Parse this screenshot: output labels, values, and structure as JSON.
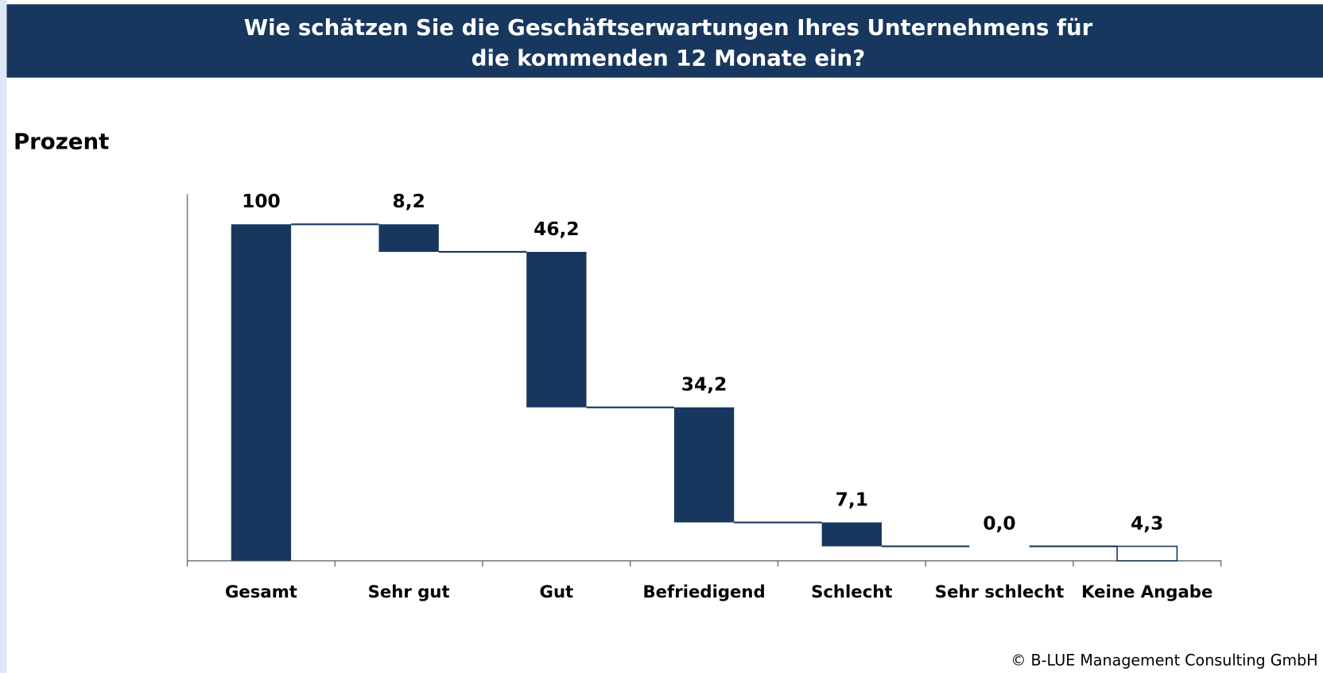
{
  "chart_data": {
    "type": "waterfall",
    "title": [
      "Wie schätzen Sie die Geschäftserwartungen Ihres Unternehmens für",
      "die kommenden 12 Monate ein?"
    ],
    "y_axis_label": "Prozent",
    "categories": [
      "Gesamt",
      "Sehr gut",
      "Gut",
      "Befriedigend",
      "Schlecht",
      "Sehr schlecht",
      "Keine Angabe"
    ],
    "values": [
      100,
      8.2,
      46.2,
      34.2,
      7.1,
      0.0,
      4.3
    ],
    "value_labels": [
      "100",
      "8,2",
      "46,2",
      "34,2",
      "7,1",
      "0,0",
      "4,3"
    ],
    "colors": [
      "#17375e",
      "#17375e",
      "#17375e",
      "#17375e",
      "#17375e",
      "#17375e",
      "#ffffff"
    ],
    "ylim": [
      0,
      109
    ],
    "footer": "© B-LUE Management Consulting GmbH"
  }
}
